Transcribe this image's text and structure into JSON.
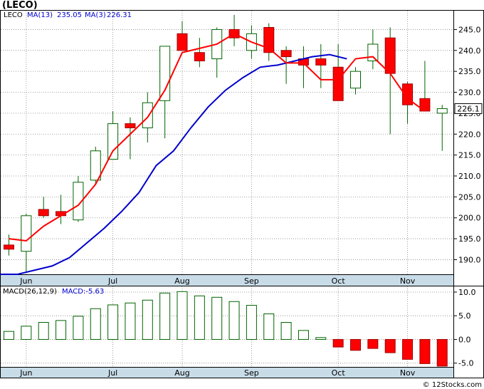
{
  "title": "(LECO)",
  "footer": "© 12Stocks.com",
  "price_panel": {
    "legend": {
      "symbol": "LECO",
      "ma13_label": "MA(13)",
      "ma13_value": "235.05",
      "ma3_label": "MA(3)",
      "ma3_value": "226.31"
    },
    "last_price_label": "226.1",
    "y_ticks": [
      "190.0",
      "195.0",
      "200.0",
      "205.0",
      "210.0",
      "215.0",
      "220.0",
      "225.0",
      "230.0",
      "235.0",
      "240.0",
      "245.0"
    ],
    "x_labels": [
      "Jun",
      "Jul",
      "Aug",
      "Sep",
      "Oct",
      "Nov"
    ]
  },
  "macd_panel": {
    "legend": {
      "label": "MACD(26,12,9)",
      "value_label": "MACD:-5.63"
    },
    "y_ticks": [
      "10.0",
      "5.0",
      "0.0",
      "-5.0"
    ],
    "x_labels": [
      "Jun",
      "Jul",
      "Aug",
      "Sep",
      "Oct",
      "Nov"
    ]
  },
  "colors": {
    "up": "#ffffff",
    "up_stroke": "#006400",
    "down": "#ff0000",
    "ma13": "#0000cc",
    "ma3": "#ff0000",
    "axis_band": "#c8dce8",
    "macd_bar": "#006400",
    "macd_neg": "#ff0000"
  },
  "chart_data": [
    {
      "type": "candlestick",
      "series_name": "LECO",
      "y_range": [
        186.5,
        249.5
      ],
      "x_labels": [
        "Jun",
        "Jul",
        "Aug",
        "Sep",
        "Oct",
        "Nov"
      ],
      "label_weeks": [
        1,
        6,
        10,
        14,
        19,
        23
      ],
      "candles": [
        {
          "o": 193.5,
          "h": 196.0,
          "l": 191.0,
          "c": 192.5
        },
        {
          "o": 192.0,
          "h": 201.0,
          "l": 187.0,
          "c": 200.5
        },
        {
          "o": 202.0,
          "h": 205.0,
          "l": 200.0,
          "c": 200.5
        },
        {
          "o": 201.5,
          "h": 205.5,
          "l": 198.5,
          "c": 200.5
        },
        {
          "o": 199.5,
          "h": 210.0,
          "l": 199.0,
          "c": 208.5
        },
        {
          "o": 209.0,
          "h": 217.0,
          "l": 208.0,
          "c": 216.0
        },
        {
          "o": 214.0,
          "h": 225.5,
          "l": 214.0,
          "c": 222.5
        },
        {
          "o": 222.5,
          "h": 224.0,
          "l": 214.0,
          "c": 221.5
        },
        {
          "o": 221.5,
          "h": 230.0,
          "l": 218.0,
          "c": 227.5
        },
        {
          "o": 228.0,
          "h": 241.0,
          "l": 219.0,
          "c": 241.0
        },
        {
          "o": 244.0,
          "h": 247.0,
          "l": 240.0,
          "c": 240.0
        },
        {
          "o": 239.5,
          "h": 243.0,
          "l": 236.0,
          "c": 237.5
        },
        {
          "o": 238.0,
          "h": 245.5,
          "l": 233.5,
          "c": 245.0
        },
        {
          "o": 245.0,
          "h": 248.5,
          "l": 241.0,
          "c": 243.0
        },
        {
          "o": 240.0,
          "h": 246.0,
          "l": 238.0,
          "c": 244.0
        },
        {
          "o": 245.5,
          "h": 246.5,
          "l": 237.5,
          "c": 239.5
        },
        {
          "o": 240.0,
          "h": 241.0,
          "l": 232.0,
          "c": 238.5
        },
        {
          "o": 238.0,
          "h": 241.0,
          "l": 231.0,
          "c": 236.5
        },
        {
          "o": 238.0,
          "h": 241.5,
          "l": 231.0,
          "c": 236.5
        },
        {
          "o": 236.0,
          "h": 241.5,
          "l": 228.0,
          "c": 228.0
        },
        {
          "o": 231.0,
          "h": 236.0,
          "l": 229.5,
          "c": 235.0
        },
        {
          "o": 237.5,
          "h": 245.0,
          "l": 235.5,
          "c": 241.5
        },
        {
          "o": 243.0,
          "h": 245.5,
          "l": 220.0,
          "c": 234.5
        },
        {
          "o": 232.0,
          "h": 232.5,
          "l": 222.5,
          "c": 227.0
        },
        {
          "o": 228.5,
          "h": 237.5,
          "l": 225.5,
          "c": 225.5
        },
        {
          "o": 225.0,
          "h": 227.0,
          "l": 216.0,
          "c": 226.1
        }
      ],
      "ma13": [
        186.5,
        186.5,
        187.5,
        188.5,
        190.5,
        194.0,
        197.5,
        201.5,
        206.0,
        212.5,
        216.0,
        221.5,
        226.5,
        230.5,
        233.5,
        236.0,
        236.5,
        237.5,
        238.5,
        239.0,
        238.0
      ],
      "ma13_start": 1,
      "ma3": [
        195.0,
        194.5,
        198.0,
        200.5,
        203.0,
        208.0,
        216.0,
        220.0,
        224.0,
        230.5,
        239.5,
        240.5,
        241.5,
        244.0,
        242.0,
        240.5,
        237.0,
        237.0,
        233.0,
        233.0,
        238.0,
        238.5,
        234.5,
        228.5,
        225.5
      ],
      "ma3_start": 0
    },
    {
      "type": "bar",
      "series_name": "MACD(26,12,9)",
      "y_range": [
        -5.8,
        11.2
      ],
      "values": [
        1.7,
        2.8,
        3.6,
        4.0,
        4.9,
        6.5,
        7.3,
        7.7,
        8.3,
        9.8,
        10.1,
        9.2,
        8.9,
        8.0,
        7.2,
        5.4,
        3.6,
        1.9,
        0.4,
        -1.6,
        -2.3,
        -1.9,
        -2.8,
        -4.2,
        -5.1,
        -5.63
      ]
    }
  ]
}
